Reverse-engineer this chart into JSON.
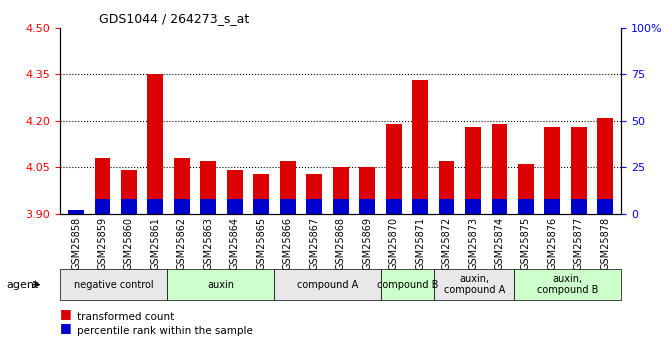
{
  "title": "GDS1044 / 264273_s_at",
  "samples": [
    "GSM25858",
    "GSM25859",
    "GSM25860",
    "GSM25861",
    "GSM25862",
    "GSM25863",
    "GSM25864",
    "GSM25865",
    "GSM25866",
    "GSM25867",
    "GSM25868",
    "GSM25869",
    "GSM25870",
    "GSM25871",
    "GSM25872",
    "GSM25873",
    "GSM25874",
    "GSM25875",
    "GSM25876",
    "GSM25877",
    "GSM25878"
  ],
  "transformed_count": [
    3.91,
    4.08,
    4.04,
    4.35,
    4.08,
    4.07,
    4.04,
    4.03,
    4.07,
    4.03,
    4.05,
    4.05,
    4.19,
    4.33,
    4.07,
    4.18,
    4.19,
    4.06,
    4.18,
    4.18,
    4.21
  ],
  "percentile_rank": [
    2.0,
    8.0,
    8.0,
    8.0,
    8.0,
    8.0,
    8.0,
    8.0,
    8.0,
    8.0,
    8.0,
    8.0,
    8.0,
    8.0,
    8.0,
    8.0,
    8.0,
    8.0,
    8.0,
    8.0,
    8.0
  ],
  "bar_bottom": 3.9,
  "ylim_left": [
    3.9,
    4.5
  ],
  "ylim_right": [
    0,
    100
  ],
  "yticks_left": [
    3.9,
    4.05,
    4.2,
    4.35,
    4.5
  ],
  "yticks_right": [
    0,
    25,
    50,
    75,
    100
  ],
  "bar_color_red": "#dd0000",
  "bar_color_blue": "#0000cc",
  "groups": [
    {
      "label": "negative control",
      "start": 0,
      "end": 3,
      "color": "#e8e8e8"
    },
    {
      "label": "auxin",
      "start": 4,
      "end": 7,
      "color": "#ccffcc"
    },
    {
      "label": "compound A",
      "start": 8,
      "end": 11,
      "color": "#e8e8e8"
    },
    {
      "label": "compound B",
      "start": 12,
      "end": 13,
      "color": "#ccffcc"
    },
    {
      "label": "auxin,\ncompound A",
      "start": 14,
      "end": 16,
      "color": "#e8e8e8"
    },
    {
      "label": "auxin,\ncompound B",
      "start": 17,
      "end": 20,
      "color": "#ccffcc"
    }
  ],
  "legend_red": "transformed count",
  "legend_blue": "percentile rank within the sample",
  "bar_width": 0.6,
  "percentile_bar_scale": 0.0004,
  "grid_color": "#000000",
  "grid_alpha": 0.4,
  "grid_linestyle": ":"
}
